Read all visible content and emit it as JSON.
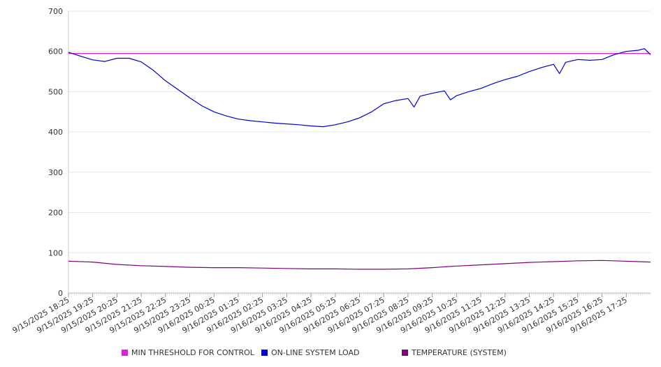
{
  "chart_data": {
    "type": "line",
    "ylim": [
      0,
      700
    ],
    "yticks": [
      0,
      100,
      200,
      300,
      400,
      500,
      600,
      700
    ],
    "grid": true,
    "legend_position": "bottom",
    "x_tick_labels": [
      "9/15/2025 18:25",
      "9/15/2025 19:25",
      "9/15/2025 20:25",
      "9/15/2025 21:25",
      "9/15/2025 22:25",
      "9/15/2025 23:25",
      "9/16/2025 00:25",
      "9/16/2025 01:25",
      "9/16/2025 02:25",
      "9/16/2025 03:25",
      "9/16/2025 04:25",
      "9/16/2025 05:25",
      "9/16/2025 06:25",
      "9/16/2025 07:25",
      "9/16/2025 08:25",
      "9/16/2025 09:25",
      "9/16/2025 10:25",
      "9/16/2025 11:25",
      "9/16/2025 12:25",
      "9/16/2025 13:25",
      "9/16/2025 14:25",
      "9/16/2025 15:25",
      "9/16/2025 16:25",
      "9/16/2025 17:25"
    ],
    "x_start": "9/15/2025 18:25",
    "x_end": "9/16/2025 18:25",
    "series": [
      {
        "name": "MIN THRESHOLD FOR CONTROL",
        "color": "#e020d0",
        "points": [
          [
            "9/15/2025 18:25",
            595
          ],
          [
            "9/16/2025 18:25",
            595
          ]
        ]
      },
      {
        "name": "ON-LINE SYSTEM LOAD",
        "color": "#0000d0",
        "points": [
          [
            "9/15/2025 18:25",
            598
          ],
          [
            "9/15/2025 18:55",
            588
          ],
          [
            "9/15/2025 19:25",
            579
          ],
          [
            "9/15/2025 19:55",
            575
          ],
          [
            "9/15/2025 20:25",
            583
          ],
          [
            "9/15/2025 20:55",
            583
          ],
          [
            "9/15/2025 21:25",
            574
          ],
          [
            "9/15/2025 21:55",
            553
          ],
          [
            "9/15/2025 22:25",
            527
          ],
          [
            "9/15/2025 22:55",
            506
          ],
          [
            "9/15/2025 23:25",
            485
          ],
          [
            "9/15/2025 23:55",
            465
          ],
          [
            "9/16/2025 00:25",
            450
          ],
          [
            "9/16/2025 00:55",
            440
          ],
          [
            "9/16/2025 01:25",
            432
          ],
          [
            "9/16/2025 01:55",
            428
          ],
          [
            "9/16/2025 02:25",
            425
          ],
          [
            "9/16/2025 02:55",
            422
          ],
          [
            "9/16/2025 03:25",
            420
          ],
          [
            "9/16/2025 03:55",
            418
          ],
          [
            "9/16/2025 04:25",
            415
          ],
          [
            "9/16/2025 04:55",
            413
          ],
          [
            "9/16/2025 05:25",
            418
          ],
          [
            "9/16/2025 05:55",
            425
          ],
          [
            "9/16/2025 06:25",
            435
          ],
          [
            "9/16/2025 06:55",
            450
          ],
          [
            "9/16/2025 07:25",
            470
          ],
          [
            "9/16/2025 07:55",
            478
          ],
          [
            "9/16/2025 08:25",
            483
          ],
          [
            "9/16/2025 08:40",
            462
          ],
          [
            "9/16/2025 08:55",
            489
          ],
          [
            "9/16/2025 09:25",
            496
          ],
          [
            "9/16/2025 09:55",
            502
          ],
          [
            "9/16/2025 10:10",
            480
          ],
          [
            "9/16/2025 10:25",
            490
          ],
          [
            "9/16/2025 10:55",
            500
          ],
          [
            "9/16/2025 11:25",
            508
          ],
          [
            "9/16/2025 11:55",
            520
          ],
          [
            "9/16/2025 12:25",
            530
          ],
          [
            "9/16/2025 12:55",
            538
          ],
          [
            "9/16/2025 13:25",
            550
          ],
          [
            "9/16/2025 13:55",
            560
          ],
          [
            "9/16/2025 14:25",
            568
          ],
          [
            "9/16/2025 14:40",
            545
          ],
          [
            "9/16/2025 14:55",
            573
          ],
          [
            "9/16/2025 15:25",
            580
          ],
          [
            "9/16/2025 15:55",
            578
          ],
          [
            "9/16/2025 16:25",
            580
          ],
          [
            "9/16/2025 16:55",
            592
          ],
          [
            "9/16/2025 17:25",
            600
          ],
          [
            "9/16/2025 17:55",
            603
          ],
          [
            "9/16/2025 18:10",
            607
          ],
          [
            "9/16/2025 18:25",
            592
          ]
        ]
      },
      {
        "name": "TEMPERATURE (SYSTEM)",
        "color": "#800080",
        "points": [
          [
            "9/15/2025 18:25",
            79
          ],
          [
            "9/15/2025 19:25",
            77
          ],
          [
            "9/15/2025 20:25",
            71
          ],
          [
            "9/15/2025 21:25",
            68
          ],
          [
            "9/15/2025 22:25",
            66
          ],
          [
            "9/15/2025 23:25",
            64
          ],
          [
            "9/16/2025 00:25",
            63
          ],
          [
            "9/16/2025 01:25",
            63
          ],
          [
            "9/16/2025 02:25",
            62
          ],
          [
            "9/16/2025 03:25",
            61
          ],
          [
            "9/16/2025 04:25",
            60
          ],
          [
            "9/16/2025 05:25",
            60
          ],
          [
            "9/16/2025 06:25",
            59
          ],
          [
            "9/16/2025 07:25",
            59
          ],
          [
            "9/16/2025 08:25",
            60
          ],
          [
            "9/16/2025 09:25",
            63
          ],
          [
            "9/16/2025 10:25",
            67
          ],
          [
            "9/16/2025 11:25",
            70
          ],
          [
            "9/16/2025 12:25",
            73
          ],
          [
            "9/16/2025 13:25",
            76
          ],
          [
            "9/16/2025 14:25",
            78
          ],
          [
            "9/16/2025 15:25",
            80
          ],
          [
            "9/16/2025 16:25",
            81
          ],
          [
            "9/16/2025 17:25",
            79
          ],
          [
            "9/16/2025 18:25",
            77
          ]
        ]
      }
    ]
  }
}
